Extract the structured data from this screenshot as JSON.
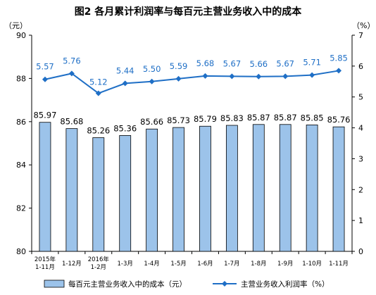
{
  "chart_data": {
    "type": "bar",
    "title": "图2  各月累计利润率与每百元主营业务收入中的成本",
    "categories": [
      [
        "2015年",
        "1-11月"
      ],
      [
        "1-12月"
      ],
      [
        "2016年",
        "1-2月"
      ],
      [
        "1-3月"
      ],
      [
        "1-4月"
      ],
      [
        "1-5月"
      ],
      [
        "1-6月"
      ],
      [
        "1-7月"
      ],
      [
        "1-8月"
      ],
      [
        "1-9月"
      ],
      [
        "1-10月"
      ],
      [
        "1-11月"
      ]
    ],
    "series": [
      {
        "name": "每百元主营业务收入中的成本（元）",
        "type": "bar",
        "axis": "left",
        "values": [
          85.97,
          85.68,
          85.26,
          85.36,
          85.66,
          85.73,
          85.79,
          85.83,
          85.87,
          85.87,
          85.85,
          85.76
        ],
        "labels": [
          "85.97",
          "85.68",
          "85.26",
          "85.36",
          "85.66",
          "85.73",
          "85.79",
          "85.83",
          "85.87",
          "85.87",
          "85.85",
          "85.76"
        ],
        "color": "#9cc3ea"
      },
      {
        "name": "主营业务收入利润率（%）",
        "type": "line",
        "axis": "right",
        "values": [
          5.57,
          5.76,
          5.12,
          5.44,
          5.5,
          5.59,
          5.68,
          5.67,
          5.66,
          5.67,
          5.71,
          5.85
        ],
        "labels": [
          "5.57",
          "5.76",
          "5.12",
          "5.44",
          "5.50",
          "5.59",
          "5.68",
          "5.67",
          "5.66",
          "5.67",
          "5.71",
          "5.85"
        ],
        "color": "#1f6fc6"
      }
    ],
    "y_left": {
      "unit": "（元）",
      "range": [
        80,
        90
      ],
      "ticks": [
        80,
        82,
        84,
        86,
        88,
        90
      ]
    },
    "y_right": {
      "unit": "（%）",
      "range": [
        0,
        7
      ],
      "ticks": [
        0,
        1,
        2,
        3,
        4,
        5,
        6,
        7
      ]
    },
    "grid": false,
    "legend_position": "bottom"
  }
}
